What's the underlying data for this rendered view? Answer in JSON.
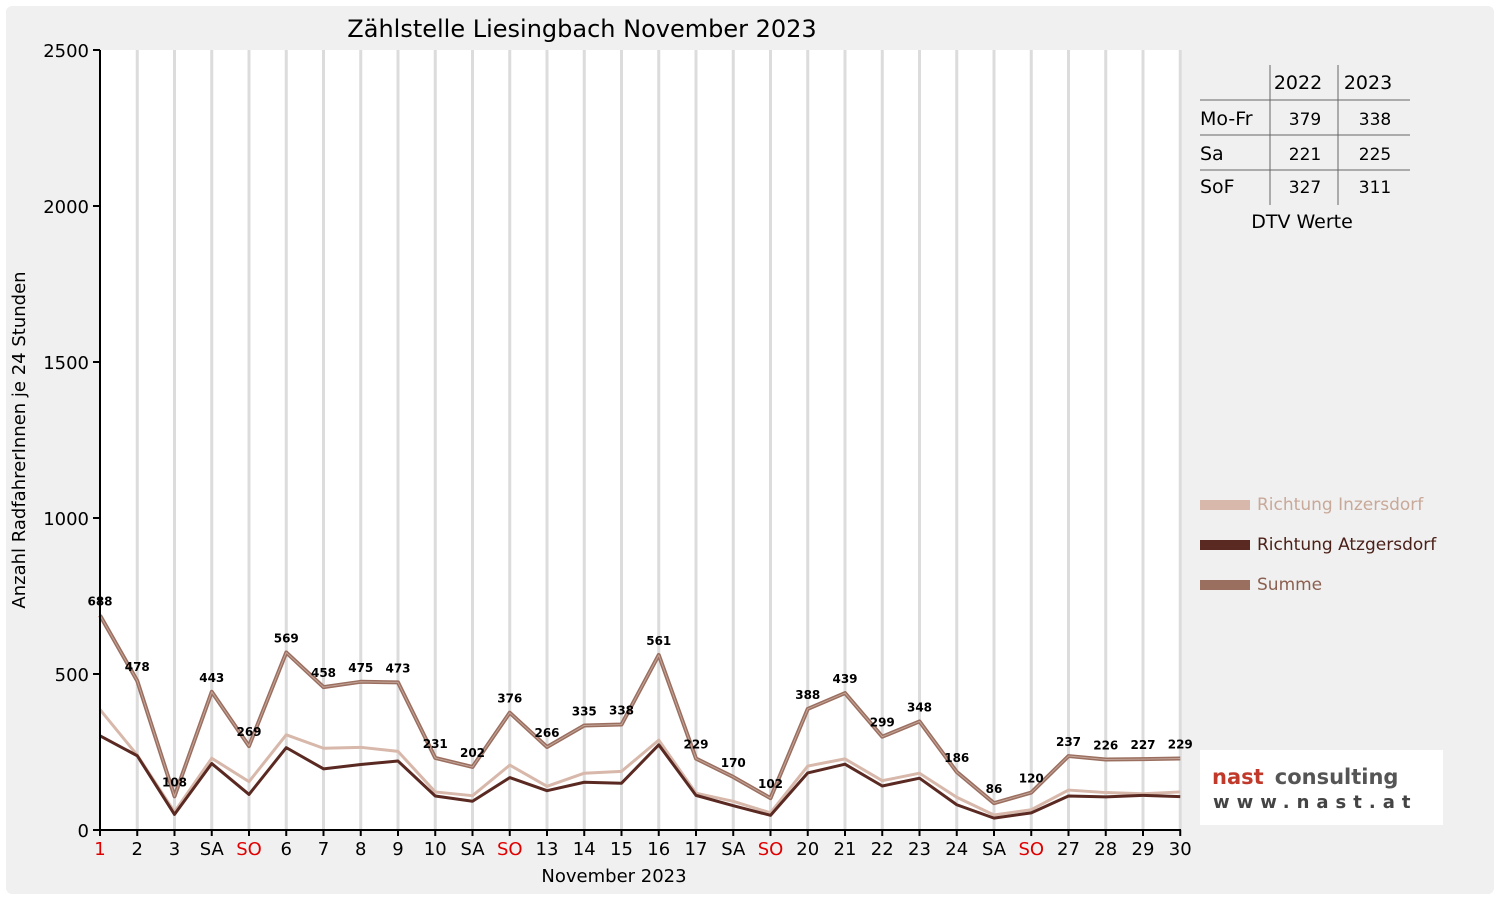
{
  "chart_data": {
    "type": "line",
    "title": "Zählstelle Liesingbach November 2023",
    "xlabel": "November 2023",
    "ylabel": "Anzahl RadfahrerInnen je 24 Stunden",
    "ylim": [
      0,
      2500
    ],
    "yticks": [
      "0",
      "500",
      "1000",
      "1500",
      "2000",
      "2500"
    ],
    "categories": [
      "1",
      "2",
      "3",
      "SA",
      "SO",
      "6",
      "7",
      "8",
      "9",
      "10",
      "SA",
      "SO",
      "13",
      "14",
      "15",
      "16",
      "17",
      "SA",
      "SO",
      "20",
      "21",
      "22",
      "23",
      "24",
      "SA",
      "SO",
      "27",
      "28",
      "29",
      "30"
    ],
    "red_categories": [
      0,
      4,
      11,
      18,
      25
    ],
    "series": [
      {
        "name": "Richtung Inzersdorf",
        "color": "#d7b8aa",
        "values": [
          386,
          240,
          58,
          230,
          155,
          305,
          262,
          265,
          252,
          122,
          110,
          208,
          140,
          182,
          188,
          288,
          118,
          92,
          55,
          205,
          228,
          158,
          182,
          105,
          48,
          65,
          128,
          120,
          116,
          122
        ]
      },
      {
        "name": "Richtung Atzgersdorf",
        "color": "#5a2a22",
        "values": [
          302,
          238,
          50,
          213,
          114,
          264,
          196,
          210,
          221,
          109,
          92,
          168,
          126,
          153,
          150,
          273,
          111,
          78,
          47,
          183,
          211,
          141,
          166,
          81,
          38,
          55,
          109,
          106,
          111,
          107
        ]
      },
      {
        "name": "Summe",
        "color": "#9b6f60",
        "values": [
          688,
          478,
          108,
          443,
          269,
          569,
          458,
          475,
          473,
          231,
          202,
          376,
          266,
          335,
          338,
          561,
          229,
          170,
          102,
          388,
          439,
          299,
          348,
          186,
          86,
          120,
          237,
          226,
          227,
          229
        ]
      }
    ],
    "data_labels": [
      "688",
      "478",
      "108",
      "443",
      "269",
      "569",
      "458",
      "475",
      "473",
      "231",
      "202",
      "376",
      "266",
      "335",
      "338",
      "561",
      "229",
      "170",
      "102",
      "388",
      "439",
      "299",
      "348",
      "186",
      "86",
      "120",
      "237",
      "226",
      "227",
      "229"
    ],
    "legend_position": "right",
    "grid": "vertical"
  },
  "dtv_table": {
    "caption": "DTV Werte",
    "columns": [
      "2022",
      "2023"
    ],
    "rows": [
      {
        "label": "Mo-Fr",
        "values": [
          "379",
          "338"
        ]
      },
      {
        "label": "Sa",
        "values": [
          "221",
          "225"
        ]
      },
      {
        "label": "SoF",
        "values": [
          "327",
          "311"
        ]
      }
    ]
  },
  "logo": {
    "main_a": "nast",
    "main_b": "consulting",
    "sub": "www.nast.at"
  }
}
